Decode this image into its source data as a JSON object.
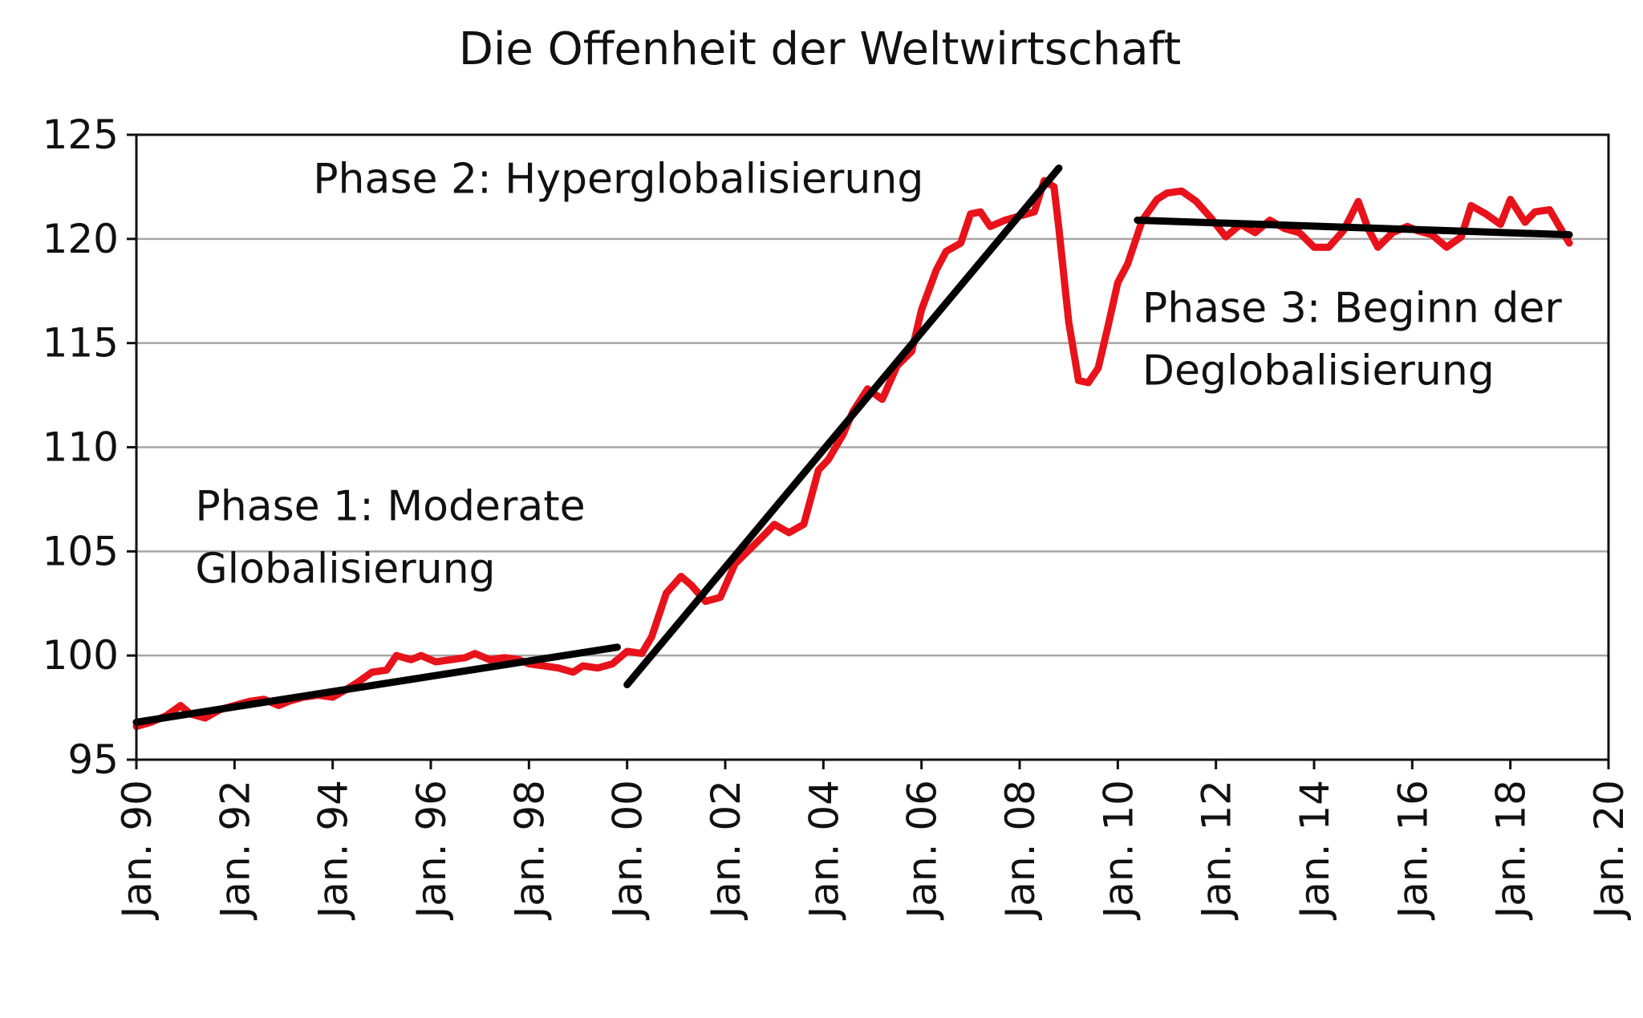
{
  "chart_data": {
    "type": "line",
    "title": "Die Offenheit der Weltwirtschaft",
    "xlabel": "",
    "ylabel": "",
    "xlim": [
      1990,
      2020
    ],
    "ylim": [
      95,
      125
    ],
    "grid": true,
    "y_ticks": [
      95,
      100,
      105,
      110,
      115,
      120,
      125
    ],
    "x_ticks": [
      {
        "value": 1990,
        "label": "Jan. 90"
      },
      {
        "value": 1992,
        "label": "Jan. 92"
      },
      {
        "value": 1994,
        "label": "Jan. 94"
      },
      {
        "value": 1996,
        "label": "Jan. 96"
      },
      {
        "value": 1998,
        "label": "Jan. 98"
      },
      {
        "value": 2000,
        "label": "Jan. 00"
      },
      {
        "value": 2002,
        "label": "Jan. 02"
      },
      {
        "value": 2004,
        "label": "Jan. 04"
      },
      {
        "value": 2006,
        "label": "Jan. 06"
      },
      {
        "value": 2008,
        "label": "Jan. 08"
      },
      {
        "value": 2010,
        "label": "Jan. 10"
      },
      {
        "value": 2012,
        "label": "Jan. 12"
      },
      {
        "value": 2014,
        "label": "Jan. 14"
      },
      {
        "value": 2016,
        "label": "Jan. 16"
      },
      {
        "value": 2018,
        "label": "Jan. 18"
      },
      {
        "value": 2020,
        "label": "Jan. 20"
      }
    ],
    "series": [
      {
        "color": "#e8121a",
        "x": [
          1990.0,
          1990.3,
          1990.6,
          1990.9,
          1991.1,
          1991.4,
          1991.7,
          1992.0,
          1992.3,
          1992.6,
          1992.9,
          1993.1,
          1993.4,
          1993.7,
          1994.0,
          1994.3,
          1994.5,
          1994.8,
          1995.1,
          1995.3,
          1995.6,
          1995.8,
          1996.1,
          1996.4,
          1996.7,
          1996.9,
          1997.2,
          1997.5,
          1997.8,
          1998.0,
          1998.3,
          1998.6,
          1998.9,
          1999.1,
          1999.4,
          1999.7,
          2000.0,
          2000.3,
          2000.5,
          2000.8,
          2001.1,
          2001.3,
          2001.6,
          2001.9,
          2002.2,
          2002.5,
          2002.8,
          2003.0,
          2003.3,
          2003.6,
          2003.9,
          2004.1,
          2004.4,
          2004.6,
          2004.9,
          2005.2,
          2005.5,
          2005.8,
          2006.0,
          2006.3,
          2006.5,
          2006.8,
          2007.0,
          2007.2,
          2007.4,
          2007.7,
          2008.0,
          2008.3,
          2008.5,
          2008.7,
          2008.8,
          2009.0,
          2009.2,
          2009.4,
          2009.6,
          2009.8,
          2010.0,
          2010.2,
          2010.5,
          2010.8,
          2011.0,
          2011.3,
          2011.6,
          2011.9,
          2012.2,
          2012.5,
          2012.8,
          2013.1,
          2013.4,
          2013.7,
          2014.0,
          2014.3,
          2014.6,
          2014.9,
          2015.1,
          2015.3,
          2015.6,
          2015.9,
          2016.1,
          2016.4,
          2016.7,
          2017.0,
          2017.2,
          2017.5,
          2017.8,
          2018.0,
          2018.3,
          2018.5,
          2018.8,
          2019.0,
          2019.2
        ],
        "values": [
          96.6,
          96.8,
          97.1,
          97.6,
          97.2,
          97.0,
          97.4,
          97.6,
          97.8,
          97.9,
          97.6,
          97.8,
          98.0,
          98.1,
          98.0,
          98.4,
          98.7,
          99.2,
          99.3,
          100.0,
          99.8,
          100.0,
          99.7,
          99.8,
          99.9,
          100.1,
          99.8,
          99.9,
          99.8,
          99.6,
          99.5,
          99.4,
          99.2,
          99.5,
          99.4,
          99.6,
          100.2,
          100.1,
          100.9,
          103.0,
          103.8,
          103.4,
          102.6,
          102.8,
          104.4,
          105.1,
          105.8,
          106.3,
          105.9,
          106.3,
          108.9,
          109.4,
          110.6,
          111.7,
          112.8,
          112.3,
          113.9,
          114.6,
          116.6,
          118.5,
          119.4,
          119.8,
          121.2,
          121.3,
          120.6,
          120.9,
          121.1,
          121.3,
          122.8,
          122.5,
          120.5,
          116.0,
          113.2,
          113.1,
          113.8,
          115.8,
          117.9,
          118.8,
          120.9,
          121.9,
          122.2,
          122.3,
          121.8,
          121.0,
          120.1,
          120.7,
          120.3,
          120.9,
          120.5,
          120.3,
          119.6,
          119.6,
          120.4,
          121.8,
          120.5,
          119.6,
          120.3,
          120.6,
          120.4,
          120.2,
          119.6,
          120.1,
          121.6,
          121.2,
          120.7,
          121.9,
          120.8,
          121.3,
          121.4,
          120.6,
          119.8
        ]
      }
    ],
    "trend_lines": [
      {
        "x": [
          1990.0,
          1999.8
        ],
        "y": [
          96.8,
          100.4
        ]
      },
      {
        "x": [
          2000.0,
          2008.8
        ],
        "y": [
          98.6,
          123.4
        ]
      },
      {
        "x": [
          2010.4,
          2019.2
        ],
        "y": [
          120.9,
          120.2
        ]
      }
    ],
    "annotations": [
      {
        "lines": [
          "Phase 1: Moderate",
          "Globalisierung"
        ],
        "x": 1991.2,
        "y": 106.5
      },
      {
        "lines": [
          "Phase 2: Hyperglobalisierung"
        ],
        "x": 1993.6,
        "y": 122.2
      },
      {
        "lines": [
          "Phase 3: Beginn der",
          "Deglobalisierung"
        ],
        "x": 2010.5,
        "y": 116.0
      }
    ]
  }
}
